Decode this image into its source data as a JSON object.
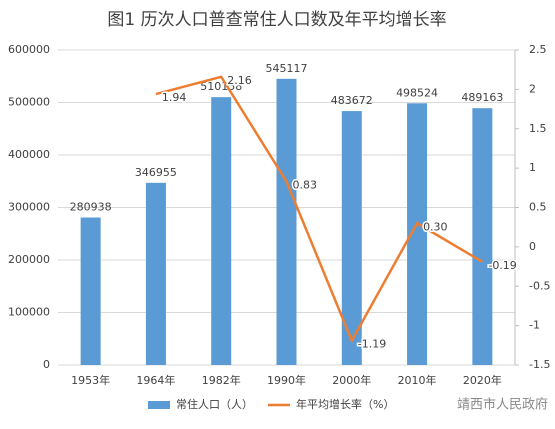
{
  "chart_data": {
    "type": "bar-line",
    "title": "图1 历次人口普查常住人口数及年平均增长率",
    "categories": [
      "1953年",
      "1964年",
      "1982年",
      "1990年",
      "2000年",
      "2010年",
      "2020年"
    ],
    "series": [
      {
        "name": "常住人口（人）",
        "type": "bar",
        "color": "#5b9bd5",
        "values": [
          280938,
          346955,
          510158,
          545117,
          483672,
          498524,
          489163
        ]
      },
      {
        "name": "年平均增长率（%）",
        "type": "line",
        "axis": "y2",
        "color": "#ed7d31",
        "values": [
          null,
          1.94,
          2.16,
          0.83,
          -1.19,
          0.3,
          -0.19
        ],
        "value_labels": [
          null,
          "1.94",
          "2.16",
          "0.83",
          "-1.19",
          "0.30",
          "-0.19"
        ]
      }
    ],
    "ylim": [
      0,
      600000
    ],
    "yticks": [
      0,
      100000,
      200000,
      300000,
      400000,
      500000,
      600000
    ],
    "y2lim": [
      -1.5,
      2.5
    ],
    "y2ticks": [
      -1.5,
      -1,
      -0.5,
      0,
      0.5,
      1,
      1.5,
      2,
      2.5
    ],
    "grid": true,
    "legend": "bottom",
    "watermark": "靖西市人民政府"
  }
}
